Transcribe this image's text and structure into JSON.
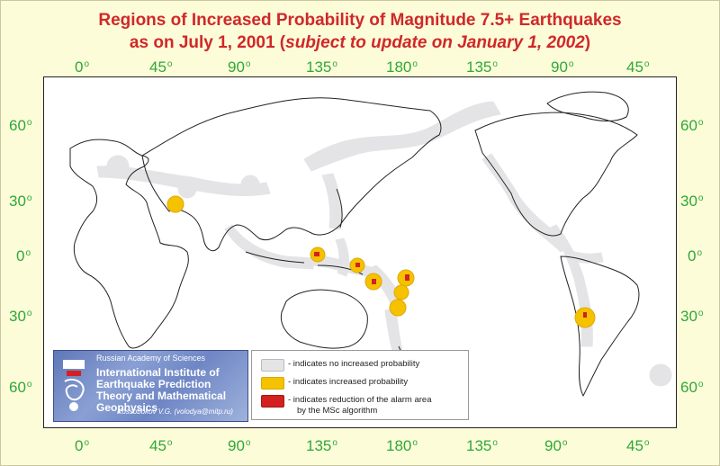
{
  "title": {
    "line1": "Regions of Increased Probability of Magnitude 7.5+ Earthquakes",
    "line2_prefix": "as on July 1, 2001 (",
    "line2_italic": "subject to update on January 1, 2002",
    "line2_suffix": ")"
  },
  "axes": {
    "top_longitude": [
      "0",
      "45",
      "90",
      "135",
      "180",
      "135",
      "90",
      "45"
    ],
    "bottom_longitude": [
      "0",
      "45",
      "90",
      "135",
      "180",
      "135",
      "90",
      "45"
    ],
    "left_latitude": [
      "60",
      "30",
      "0",
      "30",
      "60"
    ],
    "right_latitude": [
      "60",
      "30",
      "0",
      "30",
      "60"
    ],
    "degree_mark": "o"
  },
  "colors": {
    "background": "#fdfcd8",
    "axis_labels": "#2ea83a",
    "title": "#d0282a",
    "no_increase": "#e4e4e6",
    "increased": "#f5c200",
    "reduction": "#d42020",
    "coastline": "#222222"
  },
  "institute": {
    "academy": "Russian Academy of Sciences",
    "name": "International Institute of Earthquake Prediction Theory and Mathematical Geophysics",
    "author": "Kossobokov V.G. (volodya@mitp.ru)"
  },
  "legend": {
    "items": [
      {
        "key": "no_increase",
        "text": "- indicates no increased probability",
        "icon": "gray-swatch"
      },
      {
        "key": "increased",
        "text": "- indicates increased probability",
        "icon": "yellow-swatch"
      },
      {
        "key": "reduction",
        "text": "- indicates reduction of the alarm area",
        "text2": "by the MSc algorithm",
        "icon": "red-swatch"
      }
    ]
  }
}
